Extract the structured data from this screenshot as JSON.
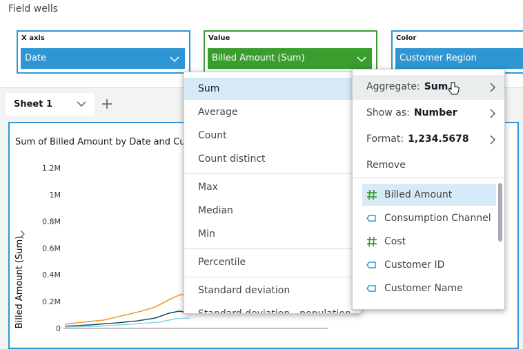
{
  "field_wells": {
    "title": "Field wells",
    "wells": [
      {
        "label": "X axis",
        "value": "Date",
        "color": "#2e96d3"
      },
      {
        "label": "Value",
        "value": "Billed Amount (Sum)",
        "color": "#3a9e2f"
      },
      {
        "label": "Color",
        "value": "Customer Region",
        "color": "#2e96d3"
      }
    ]
  },
  "sheet_tab": "Sheet 1",
  "visual": {
    "title": "Sum of Billed Amount by Date and Cus",
    "y_axis_label": "Billed Amount (Sum)",
    "y_tick_labels": [
      "1.2M",
      "1M",
      "0.8M",
      "0.6M",
      "0.4M",
      "0.2M",
      "0"
    ]
  },
  "aggregate_menu": {
    "selected": "Sum",
    "groups": [
      [
        "Sum",
        "Average",
        "Count",
        "Count distinct"
      ],
      [
        "Max",
        "Median",
        "Min"
      ],
      [
        "Percentile"
      ],
      [
        "Standard deviation",
        "Standard deviation - population"
      ]
    ]
  },
  "field_menu": {
    "options": [
      {
        "label": "Aggregate:",
        "value": "Sum"
      },
      {
        "label": "Show as:",
        "value": "Number"
      },
      {
        "label": "Format:",
        "value": "1,234.5678"
      },
      {
        "label": "Remove"
      }
    ],
    "fields": [
      {
        "name": "Billed Amount",
        "kind": "measure"
      },
      {
        "name": "Consumption Channel",
        "kind": "dimension"
      },
      {
        "name": "Cost",
        "kind": "measure"
      },
      {
        "name": "Customer ID",
        "kind": "dimension"
      },
      {
        "name": "Customer Name",
        "kind": "dimension"
      }
    ]
  }
}
